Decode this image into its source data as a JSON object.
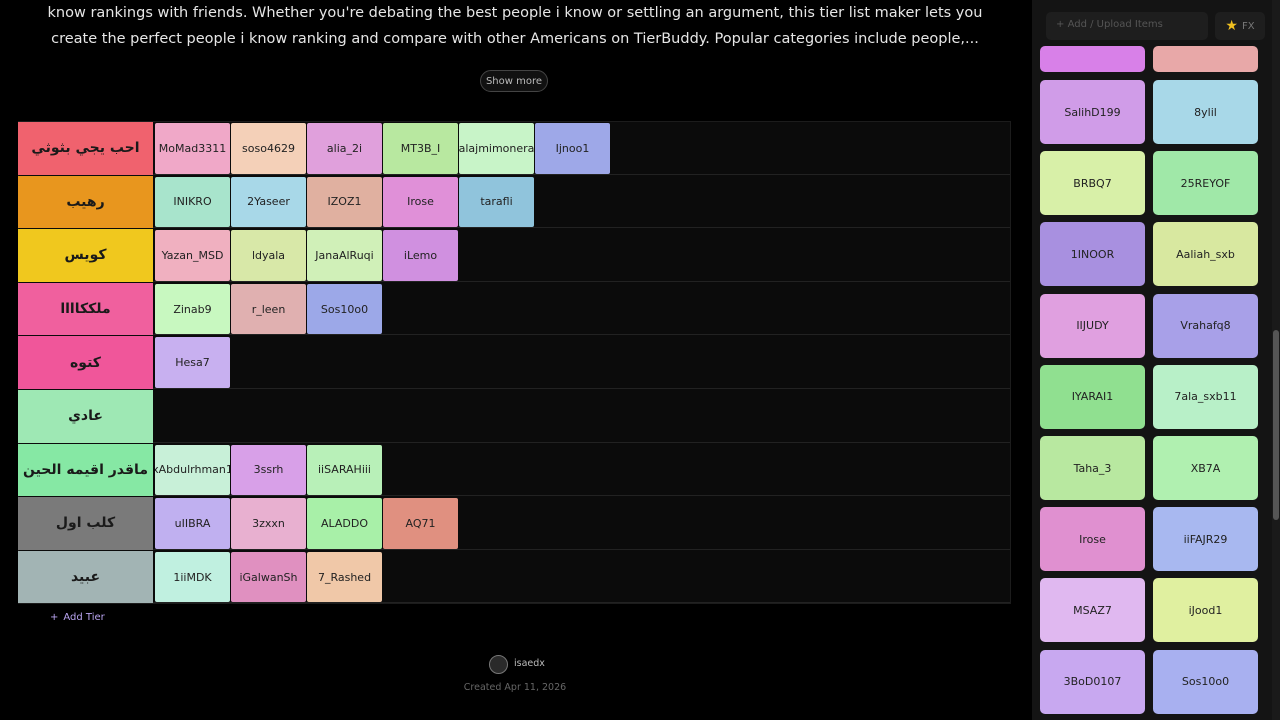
{
  "intro": {
    "lines": [
      "know rankings with friends. Whether you're debating the best people i know or settling an argument, this tier list maker lets you",
      "create the perfect people i know ranking and compare with other Americans on TierBuddy. Popular categories include people,..."
    ],
    "show_more": "Show more"
  },
  "tiers": [
    {
      "label": "احب يجي بثوثي",
      "color": "#f0626e",
      "items": [
        {
          "name": "MoMad3311",
          "color": "#f0a8c8"
        },
        {
          "name": "soso4629",
          "color": "#f4d0b8"
        },
        {
          "name": "alia_2i",
          "color": "#e0a0dc"
        },
        {
          "name": "MT3B_I",
          "color": "#b8e8a0"
        },
        {
          "name": "alajmimonera",
          "color": "#c8f4c8"
        },
        {
          "name": "Ijnoo1",
          "color": "#9ea8e8"
        }
      ]
    },
    {
      "label": "رهيب",
      "color": "#e8961e",
      "items": [
        {
          "name": "INIKRO",
          "color": "#a8e4cc"
        },
        {
          "name": "2Yaseer",
          "color": "#a8d8e8"
        },
        {
          "name": "IZOZ1",
          "color": "#e0b0a0"
        },
        {
          "name": "Irose",
          "color": "#e090d8"
        },
        {
          "name": "tarafli",
          "color": "#90c4dc"
        }
      ]
    },
    {
      "label": "كويس",
      "color": "#f0c81e",
      "items": [
        {
          "name": "Yazan_MSD",
          "color": "#f0b0c0"
        },
        {
          "name": "ldyala",
          "color": "#d8e8a8"
        },
        {
          "name": "JanaAlRuqi",
          "color": "#d0f0b8"
        },
        {
          "name": "iLemo",
          "color": "#d090e0"
        }
      ]
    },
    {
      "label": "ملككاااا",
      "color": "#f0609e",
      "items": [
        {
          "name": "Zinab9",
          "color": "#c8f8c0"
        },
        {
          "name": "r_leen",
          "color": "#e0b0b0"
        },
        {
          "name": "Sos10o0",
          "color": "#9ca8e8"
        }
      ]
    },
    {
      "label": "كتوه",
      "color": "#f0569a",
      "items": [
        {
          "name": "Hesa7",
          "color": "#c8b0f0"
        }
      ]
    },
    {
      "label": "عادي",
      "color": "#9ee8b4",
      "items": []
    },
    {
      "label": "ماقدر اقيمه الحين",
      "color": "#86e8a4",
      "items": [
        {
          "name": "xAbdulrhman1",
          "color": "#c8f0d8"
        },
        {
          "name": "3ssrh",
          "color": "#d8a0e8"
        },
        {
          "name": "iiSARAHiii",
          "color": "#b8f0b8"
        }
      ]
    },
    {
      "label": "كلب اول",
      "color": "#7a7a7a",
      "items": [
        {
          "name": "uIIBRA",
          "color": "#c0b0f0"
        },
        {
          "name": "3zxxn",
          "color": "#e8b0d0"
        },
        {
          "name": "ALADDO",
          "color": "#a8f0a8"
        },
        {
          "name": "AQ71",
          "color": "#e09080"
        }
      ]
    },
    {
      "label": "عبيد",
      "color": "#a2b4b4",
      "items": [
        {
          "name": "1iiMDK",
          "color": "#c0f0e0"
        },
        {
          "name": "iGalwanSh",
          "color": "#e090c0"
        },
        {
          "name": "7_Rashed",
          "color": "#f0c8a8"
        }
      ]
    }
  ],
  "add_tier": "Add Tier",
  "footer": {
    "user": "isaedx",
    "created": "Created Apr 11, 2026"
  },
  "sidebar": {
    "search_placeholder": "Add / Upload Items",
    "button": "FX",
    "items": [
      {
        "name": "SalihD199",
        "color": "#d09ce8"
      },
      {
        "name": "8ylil",
        "color": "#a8d8e8"
      },
      {
        "name": "BRBQ7",
        "color": "#d8f0a8"
      },
      {
        "name": "25REYOF",
        "color": "#a0e8a8"
      },
      {
        "name": "1INOOR",
        "color": "#a890e0"
      },
      {
        "name": "Aaliah_sxb",
        "color": "#d8e8a0"
      },
      {
        "name": "IIJUDY",
        "color": "#e0a0e0"
      },
      {
        "name": "Vrahafq8",
        "color": "#a8a0e8"
      },
      {
        "name": "IYARAI1",
        "color": "#90e090"
      },
      {
        "name": "7ala_sxb11",
        "color": "#b8f0c8"
      },
      {
        "name": "Taha_3",
        "color": "#b8e8a0"
      },
      {
        "name": "XB7A",
        "color": "#b0f0b0"
      },
      {
        "name": "Irose",
        "color": "#e090d0"
      },
      {
        "name": "iiFAJR29",
        "color": "#a8b8f0"
      },
      {
        "name": "MSAZ7",
        "color": "#e0b8f0"
      },
      {
        "name": "iJood1",
        "color": "#e0f0a0"
      },
      {
        "name": "3BoD0107",
        "color": "#c8a8f0"
      },
      {
        "name": "Sos10o0",
        "color": "#a8b0f0"
      }
    ]
  }
}
